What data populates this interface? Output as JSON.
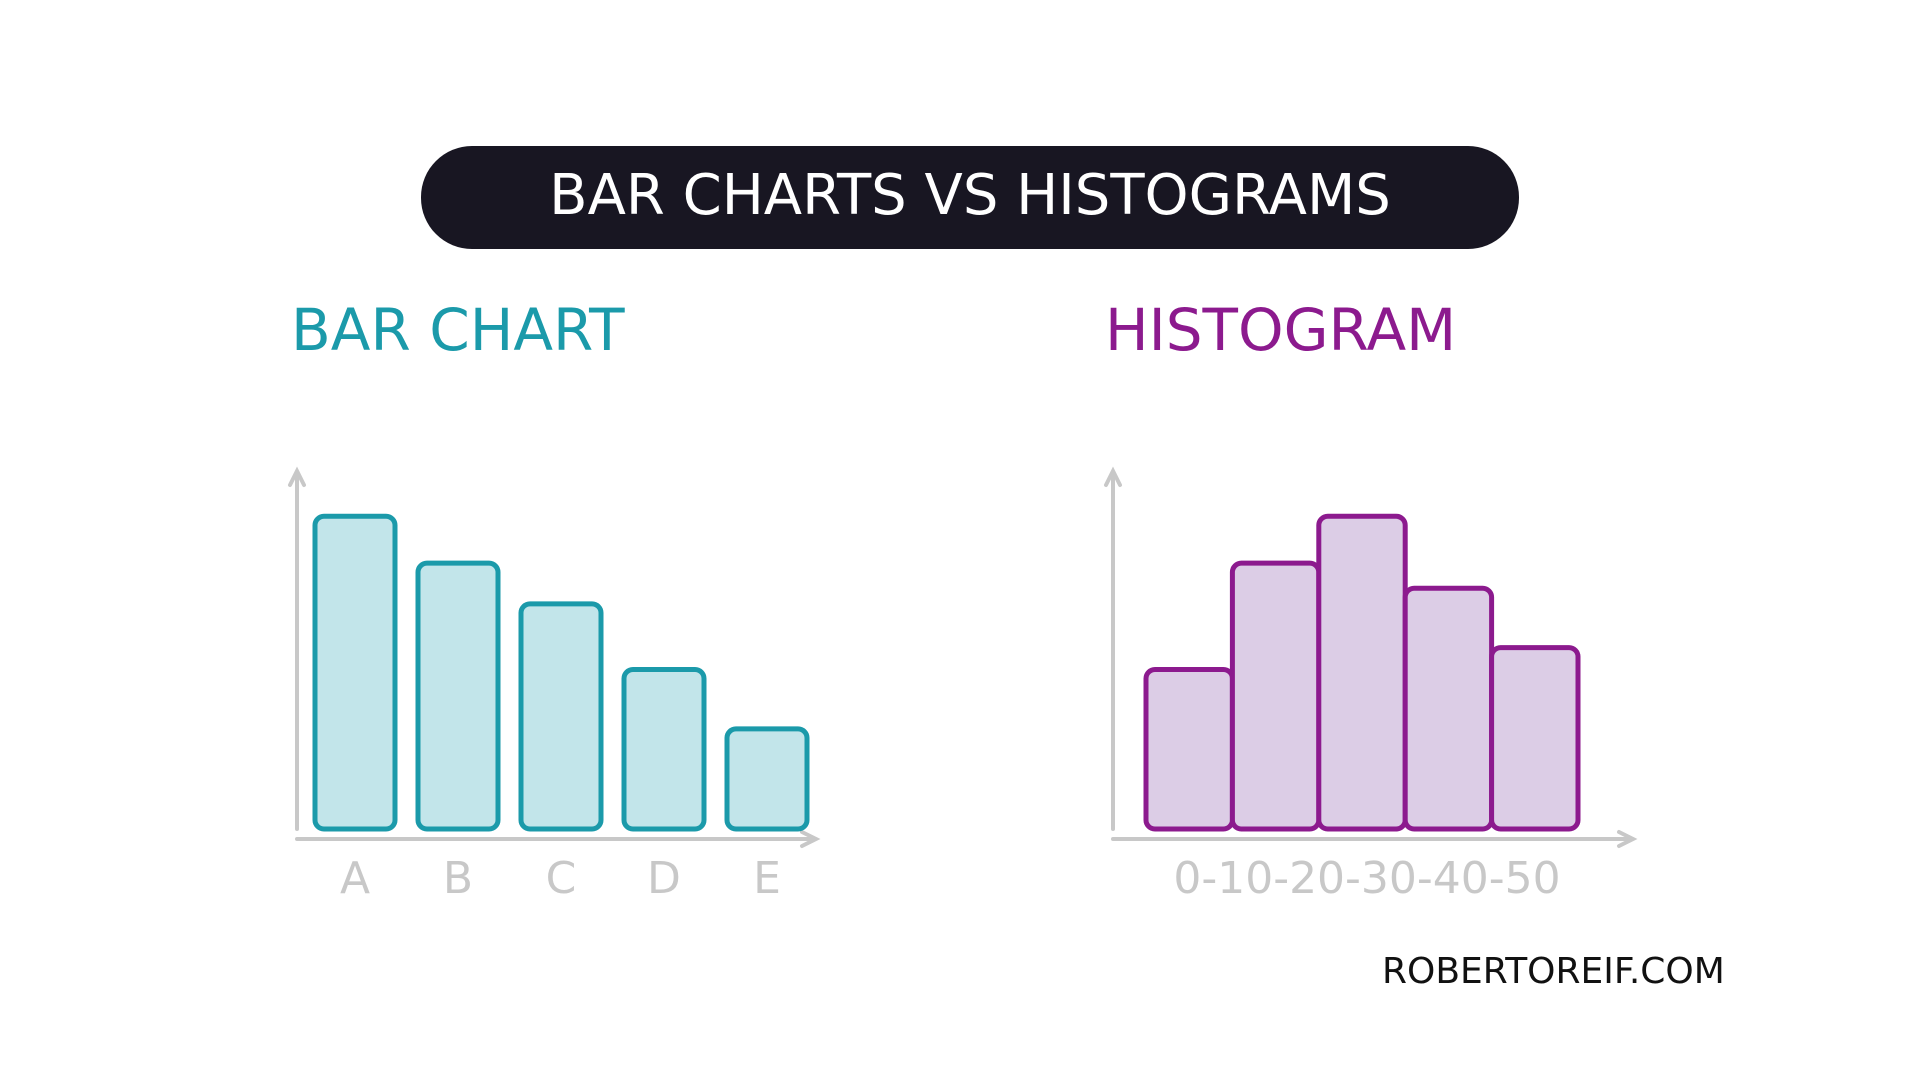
{
  "title": "BAR CHARTS VS HISTOGRAMS",
  "footer": "ROBERTOREIF.COM",
  "chart_data": [
    {
      "type": "bar",
      "title": "BAR CHART",
      "categories": [
        "A",
        "B",
        "C",
        "D",
        "E"
      ],
      "values": [
        10,
        8.5,
        7.2,
        5.1,
        3.2
      ],
      "color": "#1b9aaa",
      "fill": "#c2e5ea",
      "ylim": [
        0,
        11
      ]
    },
    {
      "type": "histogram",
      "title": "HISTOGRAM",
      "bins": [
        0,
        10,
        20,
        30,
        40,
        50
      ],
      "values": [
        5.1,
        8.5,
        10,
        7.7,
        5.8
      ],
      "x_axis_text": "0-10-20-30-40-50",
      "color": "#8c1a8e",
      "fill": "#dccde6",
      "xlim": [
        0,
        50
      ],
      "ylim": [
        0,
        11
      ]
    }
  ]
}
